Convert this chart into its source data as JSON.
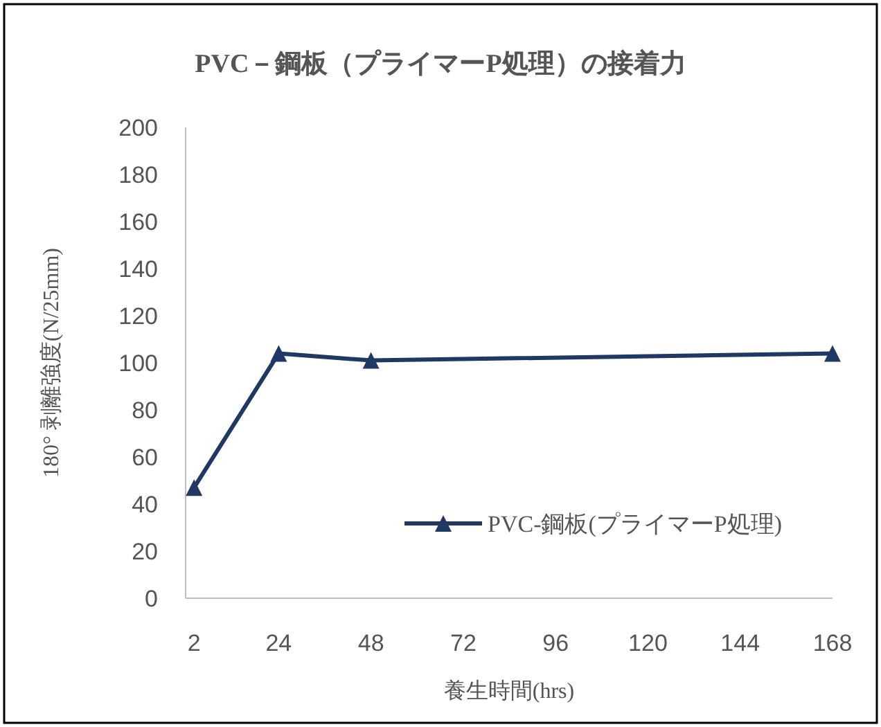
{
  "chart_data": {
    "type": "line",
    "title": "PVC－鋼板（プライマーP処理）の接着力",
    "xlabel": "養生時間(hrs)",
    "ylabel": "180° 剥離強度(N/25mm)",
    "x": [
      2,
      24,
      48,
      168
    ],
    "series": [
      {
        "name": "PVC-鋼板(プライマーP処理)",
        "color": "#203864",
        "values": [
          47,
          104,
          101,
          104
        ]
      }
    ],
    "xlim": [
      -0.2,
      168
    ],
    "xticks": [
      2,
      24,
      48,
      72,
      96,
      120,
      144,
      168
    ],
    "ylim": [
      0,
      200
    ],
    "yticks": [
      0,
      20,
      40,
      60,
      80,
      100,
      120,
      140,
      160,
      180,
      200
    ],
    "marker": "triangle",
    "line_style": "solid",
    "legend": "right",
    "grid": false
  }
}
